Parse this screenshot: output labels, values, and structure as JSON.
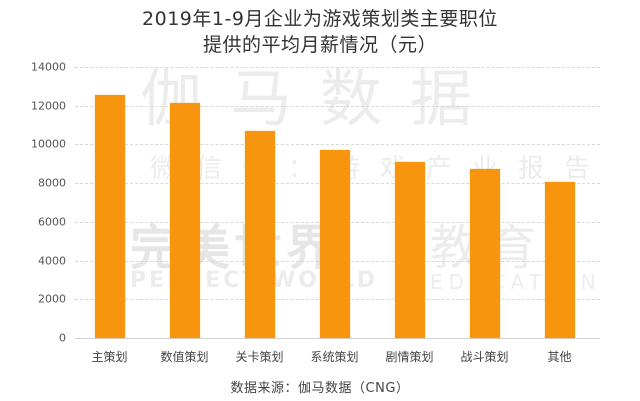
{
  "chart_data": {
    "type": "bar",
    "title": "2019年1-9月企业为游戏策划类主要职位提供的平均月薪情况（元）",
    "title_lines": [
      "2019年1-9月企业为游戏策划类主要职位",
      "提供的平均月薪情况（元）"
    ],
    "categories": [
      "主策划",
      "数值策划",
      "关卡策划",
      "系统策划",
      "剧情策划",
      "战斗策划",
      "其他"
    ],
    "values": [
      12550,
      12150,
      10700,
      9700,
      9100,
      8750,
      8050
    ],
    "xlabel": "",
    "ylabel": "",
    "ylim": [
      0,
      14000
    ],
    "yticks": [
      "0",
      "2000",
      "4000",
      "6000",
      "8000",
      "10000",
      "12000",
      "14000"
    ],
    "grid": true,
    "legend": null,
    "bar_color": "#f7950f",
    "source": "数据来源：伽马数据（CNG）"
  },
  "watermarks": {
    "line1": "伽马数据",
    "line2": "微信号：游戏产业报告",
    "line3": "完美世界",
    "line4": "教育",
    "line5": "PERFECT WORLD",
    "line6": "EDUCATION"
  }
}
